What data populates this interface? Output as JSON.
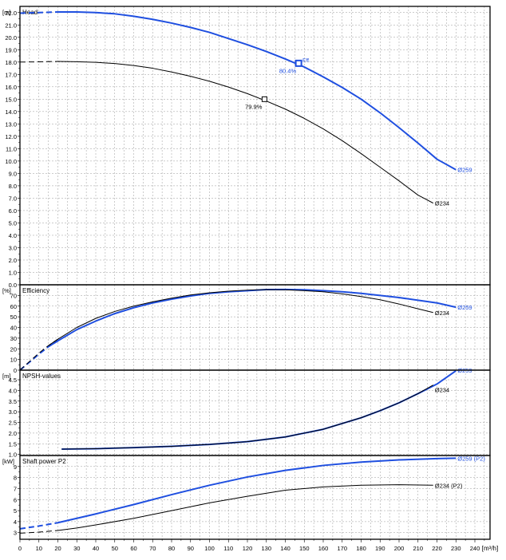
{
  "chart_data": [
    {
      "type": "line",
      "title": "Head",
      "unit": "[m]",
      "ylim": [
        0,
        22.5
      ],
      "yticks": [
        0.0,
        1.0,
        2.0,
        3.0,
        4.0,
        5.0,
        6.0,
        7.0,
        8.0,
        9.0,
        10.0,
        11.0,
        12.0,
        13.0,
        14.0,
        15.0,
        16.0,
        17.0,
        18.0,
        19.0,
        20.0,
        21.0,
        22.0
      ],
      "ytick_labels": [
        "0.0",
        "1.0",
        "2.0",
        "3.0",
        "4.0",
        "5.0",
        "6.0",
        "7.0",
        "8.0",
        "9.0",
        "10.0",
        "11.0",
        "12.0",
        "13.0",
        "14.0",
        "15.0",
        "16.0",
        "17.0",
        "18.0",
        "19.0",
        "20.0",
        "21.0",
        "22.0"
      ],
      "series": [
        {
          "name": "Ø259",
          "color": "#1f4fe0",
          "dashed_x": [
            0,
            22
          ],
          "x": [
            0,
            10,
            20,
            30,
            40,
            50,
            60,
            70,
            80,
            90,
            100,
            110,
            120,
            130,
            140,
            150,
            160,
            170,
            180,
            190,
            200,
            210,
            220,
            230
          ],
          "y": [
            21.95,
            22.0,
            22.05,
            22.05,
            22.0,
            21.9,
            21.7,
            21.45,
            21.15,
            20.8,
            20.4,
            19.9,
            19.4,
            18.85,
            18.25,
            17.6,
            16.8,
            15.95,
            15.0,
            13.9,
            12.7,
            11.45,
            10.15,
            9.3
          ]
        },
        {
          "name": "Ø234",
          "color": "#000000",
          "dashed_x": [
            0,
            22
          ],
          "x": [
            0,
            10,
            20,
            30,
            40,
            50,
            60,
            70,
            80,
            90,
            100,
            110,
            120,
            130,
            140,
            150,
            160,
            170,
            180,
            190,
            200,
            210,
            218
          ],
          "y": [
            18.0,
            18.02,
            18.05,
            18.03,
            17.98,
            17.88,
            17.72,
            17.5,
            17.2,
            16.85,
            16.45,
            15.98,
            15.45,
            14.85,
            14.2,
            13.45,
            12.6,
            11.65,
            10.6,
            9.5,
            8.4,
            7.25,
            6.6
          ]
        }
      ],
      "points": [
        {
          "name": "Ø259",
          "x": 147,
          "y": 17.9,
          "label": "80.4%",
          "tag": "Eff.",
          "color": "#1f4fe0"
        },
        {
          "name": "Ø234",
          "x": 129,
          "y": 15.0,
          "label": "79.9%",
          "tag": "",
          "color": "#000000"
        }
      ]
    },
    {
      "type": "line",
      "title": "Efficiency",
      "unit": "[%]",
      "ylim": [
        0,
        80
      ],
      "yticks": [
        0,
        10,
        20,
        30,
        40,
        50,
        60,
        70
      ],
      "ytick_labels": [
        "0",
        "10",
        "20",
        "30",
        "40",
        "50",
        "60",
        "70"
      ],
      "series": [
        {
          "name": "Ø259",
          "color": "#1f4fe0",
          "dashed_x": [
            0,
            22
          ],
          "x": [
            0,
            5,
            10,
            15,
            20,
            30,
            40,
            50,
            60,
            70,
            80,
            90,
            100,
            110,
            120,
            130,
            140,
            150,
            160,
            170,
            180,
            190,
            200,
            210,
            220,
            230
          ],
          "y": [
            0,
            7.5,
            15,
            22,
            27.5,
            38,
            46,
            53,
            58.5,
            63,
            66.5,
            69.5,
            72,
            73.5,
            74.5,
            75.5,
            75.6,
            75.3,
            74.5,
            73.5,
            72,
            70,
            68,
            65.5,
            63,
            59
          ]
        },
        {
          "name": "Ø234",
          "color": "#000000",
          "dashed_x": [
            0,
            22
          ],
          "x": [
            0,
            5,
            10,
            15,
            20,
            30,
            40,
            50,
            60,
            70,
            80,
            90,
            100,
            110,
            120,
            130,
            140,
            150,
            160,
            170,
            180,
            190,
            200,
            210,
            218
          ],
          "y": [
            0,
            8,
            16,
            23,
            29,
            40,
            48.5,
            55,
            60,
            64,
            67.5,
            70.5,
            72.5,
            74,
            75,
            75.5,
            75.3,
            74.5,
            73.5,
            71.5,
            69,
            66,
            62,
            57.5,
            54
          ]
        }
      ]
    },
    {
      "type": "line",
      "title": "NPSH-values",
      "unit": "[m]",
      "ylim": [
        0.95,
        4.95
      ],
      "yticks": [
        1.0,
        1.5,
        2.0,
        2.5,
        3.0,
        3.5,
        4.0,
        4.5
      ],
      "ytick_labels": [
        "1.0",
        "1.5",
        "2.0",
        "2.5",
        "3.0",
        "3.5",
        "4.0",
        "4.5"
      ],
      "series": [
        {
          "name": "Ø259",
          "color": "#1f4fe0",
          "dashed_x": null,
          "x": [
            22,
            40,
            60,
            80,
            100,
            120,
            140,
            160,
            180,
            190,
            200,
            210,
            220,
            230
          ],
          "y": [
            1.25,
            1.27,
            1.32,
            1.38,
            1.47,
            1.6,
            1.82,
            2.18,
            2.72,
            3.05,
            3.42,
            3.85,
            4.3,
            4.92
          ]
        },
        {
          "name": "Ø234",
          "color": "#000000",
          "dashed_x": null,
          "x": [
            22,
            40,
            60,
            80,
            100,
            120,
            140,
            160,
            180,
            190,
            200,
            210,
            218
          ],
          "y": [
            1.25,
            1.27,
            1.32,
            1.38,
            1.47,
            1.6,
            1.82,
            2.18,
            2.72,
            3.05,
            3.42,
            3.85,
            4.25
          ]
        }
      ]
    },
    {
      "type": "line",
      "title": "Shaft power P2",
      "unit": "[kW]",
      "ylim": [
        2.4,
        10
      ],
      "yticks": [
        3,
        4,
        5,
        6,
        7,
        8,
        9
      ],
      "ytick_labels": [
        "3",
        "4",
        "5",
        "6",
        "7",
        "8",
        "9"
      ],
      "series": [
        {
          "name": "Ø259 (P2)",
          "color": "#1f4fe0",
          "dashed_x": [
            0,
            22
          ],
          "x": [
            0,
            10,
            20,
            30,
            40,
            60,
            80,
            100,
            120,
            140,
            160,
            180,
            200,
            220,
            230
          ],
          "y": [
            3.35,
            3.6,
            3.9,
            4.3,
            4.7,
            5.55,
            6.45,
            7.3,
            8.05,
            8.65,
            9.1,
            9.4,
            9.6,
            9.72,
            9.76
          ]
        },
        {
          "name": "Ø234 (P2)",
          "color": "#000000",
          "dashed_x": [
            0,
            22
          ],
          "x": [
            0,
            10,
            20,
            30,
            40,
            60,
            80,
            100,
            120,
            140,
            160,
            180,
            200,
            218
          ],
          "y": [
            2.95,
            3.05,
            3.2,
            3.42,
            3.7,
            4.3,
            5.0,
            5.7,
            6.3,
            6.85,
            7.15,
            7.3,
            7.35,
            7.3
          ]
        }
      ]
    }
  ],
  "x_axis": {
    "unit": "[m³/h]",
    "ticks": [
      0,
      10,
      20,
      30,
      40,
      50,
      60,
      70,
      80,
      90,
      100,
      110,
      120,
      130,
      140,
      150,
      160,
      170,
      180,
      190,
      200,
      210,
      220,
      230,
      240
    ],
    "tick_labels": [
      "0",
      "10",
      "20",
      "30",
      "40",
      "50",
      "60",
      "70",
      "80",
      "90",
      "100",
      "110",
      "120",
      "130",
      "140",
      "150",
      "160",
      "170",
      "180",
      "190",
      "200",
      "210",
      "220",
      "230",
      "240"
    ],
    "xlim": [
      0,
      248
    ]
  },
  "grid": true,
  "colors": {
    "impeller_259": "#1f4fe0",
    "impeller_234": "#000000",
    "grid": "#9a9a9a"
  }
}
